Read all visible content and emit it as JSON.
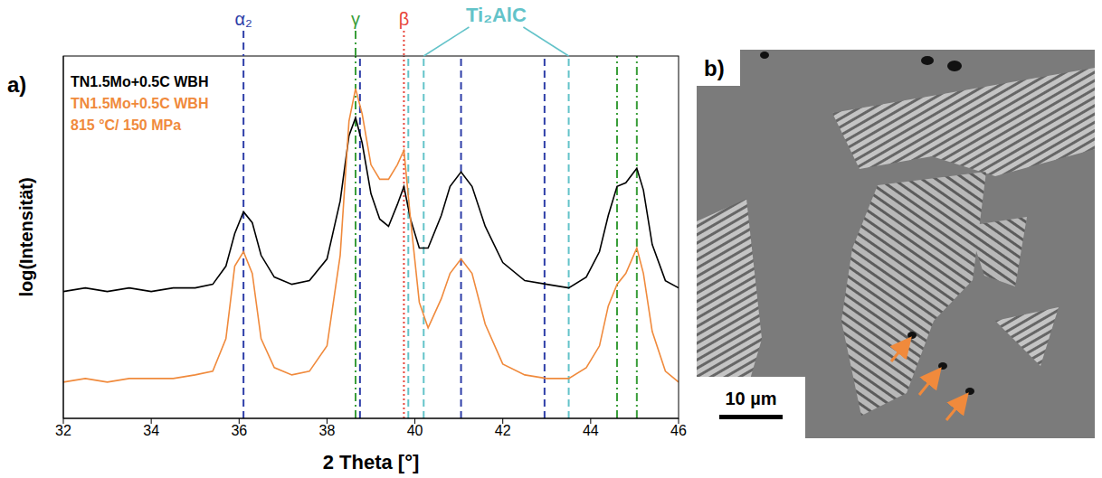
{
  "chart_data": {
    "type": "line",
    "panel_label": "a)",
    "x_label": "2 Theta [°]",
    "y_label": "log(Intensität)",
    "xlim": [
      32,
      46
    ],
    "xticks": [
      32,
      34,
      36,
      38,
      40,
      42,
      44,
      46
    ],
    "ylim": [
      0,
      100
    ],
    "yticks": [],
    "tick_labels": "x",
    "legend": "top-left",
    "x": [
      32,
      32.5,
      33,
      33.5,
      34,
      34.5,
      35,
      35.4,
      35.7,
      35.9,
      36.1,
      36.3,
      36.5,
      36.8,
      37.2,
      37.6,
      38,
      38.3,
      38.5,
      38.65,
      38.8,
      39,
      39.2,
      39.4,
      39.6,
      39.75,
      39.9,
      40.1,
      40.3,
      40.6,
      40.8,
      41.05,
      41.3,
      41.6,
      42,
      42.5,
      43,
      43.5,
      43.9,
      44.2,
      44.4,
      44.6,
      44.8,
      45.05,
      45.2,
      45.4,
      45.7,
      46
    ],
    "series": [
      {
        "name": "TN1.5Mo+0.5C WBH",
        "color": "#000000",
        "values": [
          35,
          36,
          35,
          36,
          35,
          36,
          36,
          37,
          42,
          51,
          57,
          54,
          45,
          39,
          37,
          38,
          44,
          60,
          78,
          83,
          76,
          62,
          55,
          53,
          59,
          64,
          55,
          47,
          47,
          56,
          64,
          68,
          64,
          53,
          43,
          38,
          37,
          36,
          39,
          46,
          56,
          64,
          65,
          69,
          63,
          48,
          38,
          36
        ]
      },
      {
        "name": "TN1.5Mo+0.5C WBH\n815 °C/ 150 MPa",
        "color": "#f08a3c",
        "values": [
          10,
          11,
          10,
          11,
          11,
          11,
          12,
          13,
          22,
          42,
          46,
          40,
          22,
          14,
          12,
          13,
          20,
          45,
          82,
          91,
          84,
          70,
          66,
          66,
          70,
          74,
          55,
          32,
          25,
          33,
          40,
          44,
          40,
          26,
          15,
          12,
          11,
          11,
          14,
          20,
          31,
          37,
          40,
          47,
          40,
          24,
          13,
          10
        ]
      }
    ],
    "reference_lines": [
      {
        "name": "α₂",
        "color": "#2e3ea8",
        "line_style": "dashed",
        "positions": [
          36.1,
          38.75,
          41.05,
          42.95
        ]
      },
      {
        "name": "γ",
        "color": "#3a9e3a",
        "line_style": "dashdot",
        "positions": [
          38.65,
          44.6,
          45.05
        ]
      },
      {
        "name": "β",
        "color": "#e8463c",
        "line_style": "dotted",
        "positions": [
          39.75
        ]
      },
      {
        "name": "Ti₂AlC",
        "color": "#63c3c9",
        "line_style": "dashed",
        "positions": [
          39.85,
          40.2,
          43.5
        ]
      }
    ]
  },
  "micrograph": {
    "label": "b)",
    "scale_bar": {
      "length": 10,
      "label": "10 µm"
    }
  }
}
